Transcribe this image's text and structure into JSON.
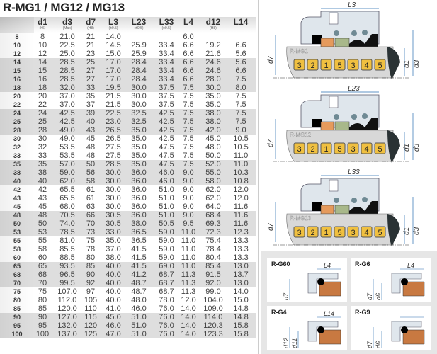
{
  "title": "R-MG1 / MG12 / MG13",
  "columns": [
    {
      "main": "d1",
      "sub": "(h6)"
    },
    {
      "main": "d3",
      "sub": "(Max)"
    },
    {
      "main": "d7",
      "sub": "(H8)"
    },
    {
      "main": "L3",
      "sub": "(±0.5)"
    },
    {
      "main": "L23",
      "sub": "(±0.5)"
    },
    {
      "main": "L33",
      "sub": "(±0.5)"
    },
    {
      "main": "L4",
      "sub": ""
    },
    {
      "main": "d12",
      "sub": "(H8)"
    },
    {
      "main": "L14",
      "sub": ""
    }
  ],
  "rows": [
    [
      "8",
      "8",
      "21.0",
      "21",
      "14.0",
      "",
      "",
      "6.0",
      "",
      ""
    ],
    [
      "10",
      "10",
      "22.5",
      "21",
      "14.5",
      "25.9",
      "33.4",
      "6.6",
      "19.2",
      "6.6"
    ],
    [
      "12",
      "12",
      "25.0",
      "23",
      "15.0",
      "25.9",
      "33.4",
      "6.6",
      "21.6",
      "5.6"
    ],
    [
      "14",
      "14",
      "28.5",
      "25",
      "17.0",
      "28.4",
      "33.4",
      "6.6",
      "24.6",
      "5.6"
    ],
    [
      "15",
      "15",
      "28.5",
      "27",
      "17.0",
      "28.4",
      "33.4",
      "6.6",
      "24.6",
      "6.6"
    ],
    [
      "16",
      "16",
      "28.5",
      "27",
      "17.0",
      "28.4",
      "33.4",
      "6.6",
      "28.0",
      "7.5"
    ],
    [
      "18",
      "18",
      "32.0",
      "33",
      "19.5",
      "30.0",
      "37.5",
      "7.5",
      "30.0",
      "8.0"
    ],
    [
      "20",
      "20",
      "37.0",
      "35",
      "21.5",
      "30.0",
      "37.5",
      "7.5",
      "35.0",
      "7.5"
    ],
    [
      "22",
      "22",
      "37.0",
      "37",
      "21.5",
      "30.0",
      "37.5",
      "7.5",
      "35.0",
      "7.5"
    ],
    [
      "24",
      "24",
      "42.5",
      "39",
      "22.5",
      "32.5",
      "42.5",
      "7.5",
      "38.0",
      "7.5"
    ],
    [
      "25",
      "25",
      "42.5",
      "40",
      "23.0",
      "32.5",
      "42.5",
      "7.5",
      "38.0",
      "7.5"
    ],
    [
      "28",
      "28",
      "49.0",
      "43",
      "26.5",
      "35.0",
      "42.5",
      "7.5",
      "42.0",
      "9.0"
    ],
    [
      "30",
      "30",
      "49.0",
      "45",
      "26.5",
      "35.0",
      "42.5",
      "7.5",
      "45.0",
      "10.5"
    ],
    [
      "32",
      "32",
      "53.5",
      "48",
      "27.5",
      "35.0",
      "47.5",
      "7.5",
      "48.0",
      "10.5"
    ],
    [
      "33",
      "33",
      "53.5",
      "48",
      "27.5",
      "35.0",
      "47.5",
      "7.5",
      "50.0",
      "11.0"
    ],
    [
      "35",
      "35",
      "57.0",
      "50",
      "28.5",
      "35.0",
      "47.5",
      "7.5",
      "52.0",
      "11.0"
    ],
    [
      "38",
      "38",
      "59.0",
      "56",
      "30.0",
      "36.0",
      "46.0",
      "9.0",
      "55.0",
      "10.3"
    ],
    [
      "40",
      "40",
      "62.0",
      "58",
      "30.0",
      "36.0",
      "46.0",
      "9.0",
      "58.0",
      "10.8"
    ],
    [
      "42",
      "42",
      "65.5",
      "61",
      "30.0",
      "36.0",
      "51.0",
      "9.0",
      "62.0",
      "12.0"
    ],
    [
      "43",
      "43",
      "65.5",
      "61",
      "30.0",
      "36.0",
      "51.0",
      "9.0",
      "62.0",
      "12.0"
    ],
    [
      "45",
      "45",
      "68.0",
      "63",
      "30.0",
      "36.0",
      "51.0",
      "9.0",
      "64.0",
      "11.6"
    ],
    [
      "48",
      "48",
      "70.5",
      "66",
      "30.5",
      "36.0",
      "51.0",
      "9.0",
      "68.4",
      "11.6"
    ],
    [
      "50",
      "50",
      "74.0",
      "70",
      "30.5",
      "38.0",
      "50.5",
      "9.5",
      "69.3",
      "11.6"
    ],
    [
      "53",
      "53",
      "78.5",
      "73",
      "33.0",
      "36.5",
      "59.0",
      "11.0",
      "72.3",
      "12.3"
    ],
    [
      "55",
      "55",
      "81.0",
      "75",
      "35.0",
      "36.5",
      "59.0",
      "11.0",
      "75.4",
      "13.3"
    ],
    [
      "58",
      "58",
      "85.5",
      "78",
      "37.0",
      "41.5",
      "59.0",
      "11.0",
      "78.4",
      "13.3"
    ],
    [
      "60",
      "60",
      "88.5",
      "80",
      "38.0",
      "41.5",
      "59.0",
      "11.0",
      "80.4",
      "13.3"
    ],
    [
      "65",
      "65",
      "93.5",
      "85",
      "40.0",
      "41.5",
      "69.0",
      "11.0",
      "85.4",
      "13.0"
    ],
    [
      "68",
      "68",
      "96.5",
      "90",
      "40.0",
      "41.2",
      "68.7",
      "11.3",
      "91.5",
      "13.7"
    ],
    [
      "70",
      "70",
      "99.5",
      "92",
      "40.0",
      "48.7",
      "68.7",
      "11.3",
      "92.0",
      "13.0"
    ],
    [
      "75",
      "75",
      "107.0",
      "97",
      "40.0",
      "48.7",
      "68.7",
      "11.3",
      "99.0",
      "14.0"
    ],
    [
      "80",
      "80",
      "112.0",
      "105",
      "40.0",
      "48.0",
      "78.0",
      "12.0",
      "104.0",
      "15.0"
    ],
    [
      "85",
      "85",
      "120.0",
      "110",
      "41.0",
      "46.0",
      "76.0",
      "14.0",
      "109.0",
      "14.8"
    ],
    [
      "90",
      "90",
      "127.0",
      "115",
      "45.0",
      "51.0",
      "76.0",
      "14.0",
      "114.0",
      "14.8"
    ],
    [
      "95",
      "95",
      "132.0",
      "120",
      "46.0",
      "51.0",
      "76.0",
      "14.0",
      "120.3",
      "15.8"
    ],
    [
      "100",
      "100",
      "137.0",
      "125",
      "47.0",
      "51.0",
      "76.0",
      "14.0",
      "123.3",
      "15.8"
    ]
  ],
  "diagrams": [
    {
      "model": "R-MG1",
      "length": "L3",
      "left": "d7",
      "right1": "d1",
      "right2": "d3",
      "parts": [
        "3",
        "2",
        "1",
        "5",
        "3",
        "4",
        "5"
      ]
    },
    {
      "model": "R-MG12",
      "length": "L23",
      "left": "d7",
      "right1": "d1",
      "right2": "d3",
      "parts": [
        "3",
        "2",
        "1",
        "5",
        "3",
        "4",
        "5"
      ]
    },
    {
      "model": "R-MG13",
      "length": "L33",
      "left": "d7",
      "right1": "d1",
      "right2": "d3",
      "parts": [
        "3",
        "2",
        "1",
        "5",
        "3",
        "4",
        "5"
      ]
    }
  ],
  "seats": [
    {
      "model": "R-G60",
      "length": "L4",
      "dims": [
        "d7"
      ]
    },
    {
      "model": "R-G6",
      "length": "L4",
      "dims": [
        "d7",
        "d6"
      ]
    },
    {
      "model": "R-G4",
      "length": "L14",
      "dims": [
        "d12",
        "d11"
      ]
    },
    {
      "model": "R-G9",
      "length": "",
      "dims": [
        "d7",
        "d6"
      ]
    }
  ],
  "colors": {
    "band": "#dedede",
    "shaft": "#d8d8d8",
    "part_box": "#f0c040",
    "seat": "#c87941",
    "dim_line": "#2a6fb0"
  }
}
